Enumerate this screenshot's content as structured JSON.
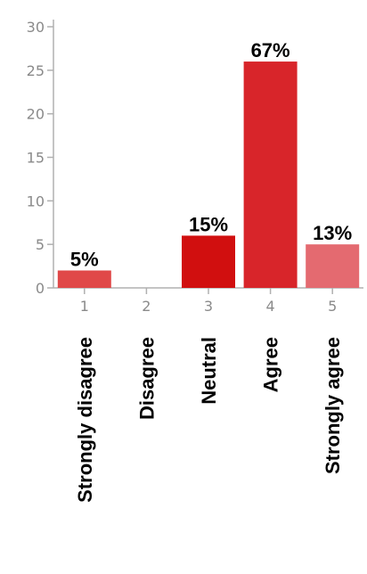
{
  "chart_data": {
    "type": "bar",
    "x": [
      "1",
      "2",
      "3",
      "4",
      "5"
    ],
    "categories": [
      "Strongly disagree",
      "Disagree",
      "Neutral",
      "Agree",
      "Strongly agree"
    ],
    "values": [
      2,
      0,
      6,
      26,
      5
    ],
    "data_labels": [
      "5%",
      "",
      "15%",
      "67%",
      "13%"
    ],
    "colors": [
      "#e04848",
      "#e04848",
      "#d10f0f",
      "#d8252a",
      "#e46a70"
    ],
    "ylim": [
      0,
      30
    ],
    "yticks": [
      0,
      5,
      10,
      15,
      20,
      25,
      30
    ],
    "grid": false,
    "title": "",
    "xlabel": "",
    "ylabel": ""
  }
}
